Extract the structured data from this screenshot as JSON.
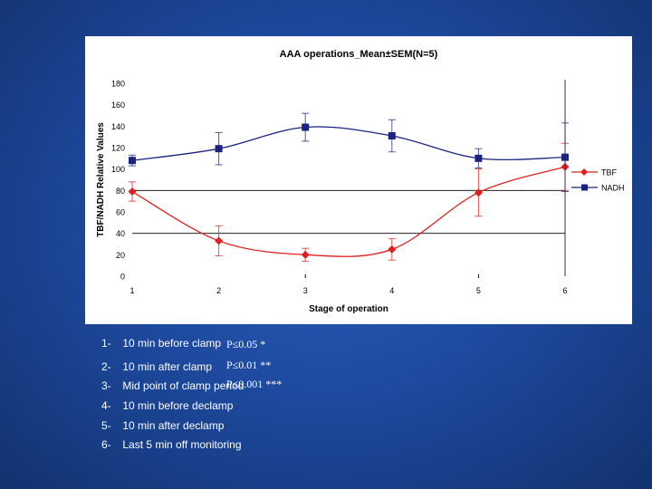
{
  "chart_data": {
    "type": "line",
    "title": "AAA operations_Mean±SEM(N=5)",
    "xlabel": "Stage of operation",
    "ylabel": "TBF/NADH Relative Values",
    "x": [
      1,
      2,
      3,
      4,
      5,
      6
    ],
    "x_ticks": [
      "1",
      "2",
      "3",
      "4",
      "5",
      "6"
    ],
    "ylim": [
      0,
      180
    ],
    "y_ticks": [
      "0",
      "20",
      "40",
      "60",
      "80",
      "100",
      "120",
      "140",
      "160",
      "180"
    ],
    "reference_lines": [
      40,
      80
    ],
    "legend_position": "right",
    "series": [
      {
        "name": "TBF",
        "color": "#e02020",
        "marker": "diamond",
        "values": [
          79,
          33,
          20,
          25,
          78,
          102
        ],
        "error": [
          9,
          14,
          6,
          10,
          22,
          22
        ]
      },
      {
        "name": "NADH",
        "color": "#1a237e",
        "marker": "square",
        "values": [
          108,
          119,
          139,
          131,
          110,
          111
        ],
        "error": [
          5,
          15,
          13,
          15,
          9,
          32
        ]
      }
    ]
  },
  "legend_items": [
    {
      "num": "1-",
      "label": "10 min before clamp"
    },
    {
      "num": "2-",
      "label": "10 min after clamp"
    },
    {
      "num": "3-",
      "label": "Mid point of clamp period"
    },
    {
      "num": "4-",
      "label": "10 min before declamp"
    },
    {
      "num": "5-",
      "label": "10 min after declamp"
    },
    {
      "num": "6-",
      "label": "Last 5 min off monitoring"
    }
  ],
  "significance": [
    "P≤0.05 *",
    "P≤0.01 **",
    "P≤0.001 ***"
  ]
}
